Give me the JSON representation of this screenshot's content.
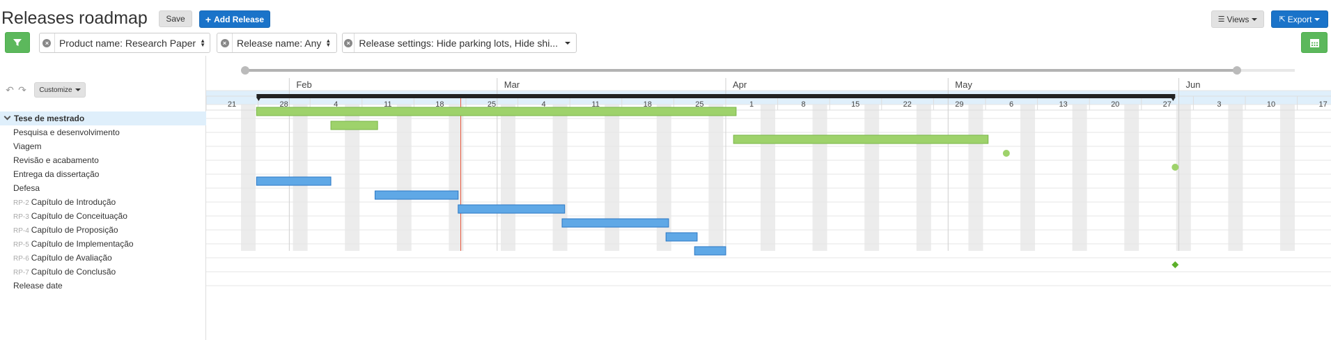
{
  "header": {
    "title": "Releases roadmap",
    "save_label": "Save",
    "add_release_label": "Add Release",
    "views_label": "Views",
    "export_label": "Export"
  },
  "filters": [
    {
      "label": "Product name: Research Paper"
    },
    {
      "label": "Release name: Any"
    },
    {
      "label": "Release settings: Hide parking lots, Hide shi..."
    }
  ],
  "toolbar": {
    "customize_label": "Customize"
  },
  "rows": [
    {
      "key": "",
      "label": "Tese de mestrado",
      "group": true
    },
    {
      "key": "",
      "label": "Pesquisa e desenvolvimento"
    },
    {
      "key": "",
      "label": "Viagem"
    },
    {
      "key": "",
      "label": "Revisão e acabamento"
    },
    {
      "key": "",
      "label": "Entrega da dissertação"
    },
    {
      "key": "",
      "label": "Defesa"
    },
    {
      "key": "RP-2",
      "label": "Capítulo de Introdução"
    },
    {
      "key": "RP-3",
      "label": "Capítulo de Conceituação"
    },
    {
      "key": "RP-4",
      "label": "Capítulo de Proposição"
    },
    {
      "key": "RP-5",
      "label": "Capítulo de Implementação"
    },
    {
      "key": "RP-6",
      "label": "Capítulo de Avaliação"
    },
    {
      "key": "RP-7",
      "label": "Capítulo de Conclusão"
    },
    {
      "key": "",
      "label": "Release date"
    }
  ],
  "timeline": {
    "months": [
      {
        "label": "Feb",
        "week_index": 1.6
      },
      {
        "label": "Mar",
        "week_index": 5.6
      },
      {
        "label": "Apr",
        "week_index": 10.0
      },
      {
        "label": "May",
        "week_index": 14.28
      },
      {
        "label": "Jun",
        "week_index": 18.72
      }
    ],
    "weeks": [
      "21",
      "28",
      "4",
      "11",
      "18",
      "25",
      "4",
      "11",
      "18",
      "25",
      "1",
      "8",
      "15",
      "22",
      "29",
      "6",
      "13",
      "20",
      "27",
      "3",
      "10",
      "17"
    ],
    "today_week_index": 4.9,
    "slider_range": [
      0.0,
      1.0
    ]
  },
  "colors": {
    "group_bar": "#222222",
    "green_bar": "#9ed26b",
    "green_border": "#7ab648",
    "blue_bar": "#5fa8e6",
    "blue_border": "#2c78c4",
    "milestone": "#9ed26b",
    "release_date": "#5cb02a",
    "today_line": "#e8553a"
  },
  "bars": [
    {
      "row": 0,
      "start": 0.97,
      "end": 18.65,
      "type": "group"
    },
    {
      "row": 1,
      "start": 0.97,
      "end": 10.2,
      "type": "green"
    },
    {
      "row": 2,
      "start": 2.4,
      "end": 3.3,
      "type": "green"
    },
    {
      "row": 3,
      "start": 10.15,
      "end": 15.05,
      "type": "green"
    },
    {
      "row": 6,
      "start": 0.97,
      "end": 2.4,
      "type": "blue"
    },
    {
      "row": 7,
      "start": 3.25,
      "end": 4.85,
      "type": "blue"
    },
    {
      "row": 8,
      "start": 4.85,
      "end": 6.9,
      "type": "blue"
    },
    {
      "row": 9,
      "start": 6.85,
      "end": 8.9,
      "type": "blue"
    },
    {
      "row": 10,
      "start": 8.85,
      "end": 9.45,
      "type": "blue"
    },
    {
      "row": 11,
      "start": 9.4,
      "end": 10.0,
      "type": "blue"
    }
  ],
  "milestones": [
    {
      "row": 4,
      "at": 15.4,
      "shape": "circle"
    },
    {
      "row": 5,
      "at": 18.65,
      "shape": "circle"
    },
    {
      "row": 12,
      "at": 18.65,
      "shape": "diamond"
    }
  ]
}
